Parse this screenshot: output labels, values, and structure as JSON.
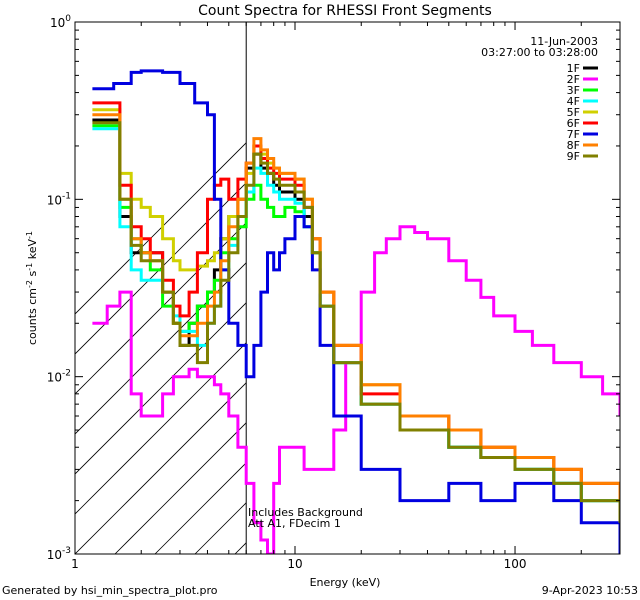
{
  "chart_data": {
    "type": "line",
    "title": "Count Spectra for RHESSI Front Segments",
    "xlabel": "Energy (keV)",
    "ylabel": "counts cm-2 s-1 keV-1",
    "xscale": "log",
    "yscale": "log",
    "xlim": [
      1,
      300
    ],
    "ylim": [
      0.001,
      1
    ],
    "xticks": [
      {
        "v": 1,
        "label": "1"
      },
      {
        "v": 10,
        "label": "10"
      },
      {
        "v": 100,
        "label": "100"
      }
    ],
    "yticks": [
      {
        "v": 1,
        "base": "10",
        "exp": "0"
      },
      {
        "v": 0.1,
        "base": "10",
        "exp": "-1"
      },
      {
        "v": 0.01,
        "base": "10",
        "exp": "-2"
      },
      {
        "v": 0.001,
        "base": "10",
        "exp": "-3"
      }
    ],
    "attenuated_region_max_kev": 6,
    "date": "11-Jun-2003",
    "time_range": "03:27:00 to 03:28:00",
    "annotation_lines": [
      "Includes Background",
      "Att A1, FDecim 1"
    ],
    "legend_position": "top-right",
    "series": [
      {
        "name": "1F",
        "color": "#000000",
        "x": [
          1.2,
          1.4,
          1.6,
          1.8,
          2.0,
          2.2,
          2.5,
          2.8,
          3.0,
          3.3,
          3.6,
          4.0,
          4.3,
          4.6,
          5.0,
          5.5,
          6.0,
          6.5,
          7.0,
          7.5,
          8.0,
          8.5,
          9.0,
          10.0,
          11.0,
          12.0,
          13.0,
          15.0,
          20.0,
          30.0,
          50.0,
          70.0,
          100.0,
          150.0,
          200.0,
          300.0
        ],
        "y": [
          0.28,
          0.28,
          0.08,
          0.05,
          0.05,
          0.05,
          0.03,
          0.02,
          0.015,
          0.02,
          0.025,
          0.03,
          0.04,
          0.06,
          0.08,
          0.1,
          0.15,
          0.18,
          0.15,
          0.14,
          0.12,
          0.11,
          0.11,
          0.1,
          0.08,
          0.05,
          0.025,
          0.012,
          0.007,
          0.005,
          0.004,
          0.0035,
          0.003,
          0.0025,
          0.002,
          0.0015
        ]
      },
      {
        "name": "2F",
        "color": "#ff00ff",
        "x": [
          1.2,
          1.4,
          1.6,
          1.8,
          2.0,
          2.2,
          2.5,
          2.8,
          3.0,
          3.3,
          3.6,
          4.0,
          4.3,
          4.6,
          5.0,
          5.5,
          6.0,
          6.5,
          7.0,
          7.5,
          8.0,
          8.5,
          9.0,
          10.0,
          11.0,
          12.0,
          13.0,
          15.0,
          17.0,
          20.0,
          23.0,
          26.0,
          30.0,
          35.0,
          40.0,
          50.0,
          60.0,
          70.0,
          80.0,
          100.0,
          120.0,
          150.0,
          200.0,
          250.0,
          300.0
        ],
        "y": [
          0.02,
          0.025,
          0.03,
          0.008,
          0.006,
          0.006,
          0.008,
          0.01,
          0.01,
          0.011,
          0.01,
          0.01,
          0.009,
          0.008,
          0.006,
          0.004,
          0.0025,
          0.0015,
          0.0012,
          0.001,
          0.0025,
          0.004,
          0.004,
          0.004,
          0.003,
          0.003,
          0.003,
          0.005,
          0.012,
          0.03,
          0.05,
          0.06,
          0.07,
          0.065,
          0.06,
          0.045,
          0.035,
          0.028,
          0.022,
          0.018,
          0.015,
          0.012,
          0.01,
          0.008,
          0.006
        ]
      },
      {
        "name": "3F",
        "color": "#00ff00",
        "x": [
          1.2,
          1.4,
          1.6,
          1.8,
          2.0,
          2.2,
          2.5,
          2.8,
          3.0,
          3.3,
          3.6,
          4.0,
          4.3,
          4.6,
          5.0,
          5.5,
          6.0,
          6.5,
          7.0,
          7.5,
          8.0,
          8.5,
          9.0,
          10.0,
          11.0,
          12.0,
          13.0,
          15.0,
          20.0,
          30.0,
          50.0,
          70.0,
          100.0,
          150.0,
          200.0,
          300.0
        ],
        "y": [
          0.26,
          0.26,
          0.09,
          0.06,
          0.05,
          0.04,
          0.025,
          0.02,
          0.018,
          0.02,
          0.025,
          0.03,
          0.035,
          0.05,
          0.06,
          0.07,
          0.1,
          0.12,
          0.1,
          0.09,
          0.08,
          0.08,
          0.09,
          0.085,
          0.07,
          0.05,
          0.025,
          0.012,
          0.007,
          0.005,
          0.004,
          0.0035,
          0.003,
          0.0025,
          0.002,
          0.0015
        ]
      },
      {
        "name": "4F",
        "color": "#00ffff",
        "x": [
          1.2,
          1.4,
          1.6,
          1.8,
          2.0,
          2.2,
          2.5,
          2.8,
          3.0,
          3.3,
          3.6,
          4.0,
          4.3,
          4.6,
          5.0,
          5.5,
          6.0,
          6.5,
          7.0,
          7.5,
          8.0,
          8.5,
          9.0,
          10.0,
          11.0,
          12.0,
          13.0,
          15.0,
          20.0,
          30.0,
          50.0,
          70.0,
          100.0,
          150.0,
          200.0,
          300.0
        ],
        "y": [
          0.25,
          0.25,
          0.07,
          0.04,
          0.035,
          0.035,
          0.03,
          0.022,
          0.018,
          0.018,
          0.015,
          0.02,
          0.025,
          0.04,
          0.055,
          0.08,
          0.11,
          0.15,
          0.14,
          0.12,
          0.11,
          0.1,
          0.1,
          0.095,
          0.07,
          0.05,
          0.025,
          0.012,
          0.007,
          0.005,
          0.004,
          0.0035,
          0.003,
          0.0025,
          0.002,
          0.0015
        ]
      },
      {
        "name": "5F",
        "color": "#d0d000",
        "x": [
          1.2,
          1.4,
          1.6,
          1.8,
          2.0,
          2.2,
          2.5,
          2.8,
          3.0,
          3.3,
          3.6,
          4.0,
          4.3,
          4.6,
          5.0,
          5.5,
          6.0,
          6.5,
          7.0,
          7.5,
          8.0,
          8.5,
          9.0,
          10.0,
          11.0,
          12.0,
          13.0,
          15.0,
          20.0,
          30.0,
          50.0,
          70.0,
          100.0,
          150.0,
          200.0,
          300.0
        ],
        "y": [
          0.32,
          0.32,
          0.14,
          0.1,
          0.09,
          0.08,
          0.06,
          0.045,
          0.04,
          0.04,
          0.042,
          0.045,
          0.05,
          0.06,
          0.08,
          0.1,
          0.14,
          0.2,
          0.18,
          0.16,
          0.15,
          0.14,
          0.14,
          0.13,
          0.1,
          0.06,
          0.03,
          0.015,
          0.009,
          0.006,
          0.005,
          0.004,
          0.0035,
          0.003,
          0.0025,
          0.002
        ]
      },
      {
        "name": "6F",
        "color": "#ff0000",
        "x": [
          1.2,
          1.4,
          1.6,
          1.8,
          2.0,
          2.2,
          2.5,
          2.8,
          3.0,
          3.3,
          3.6,
          4.0,
          4.3,
          4.6,
          5.0,
          5.5,
          6.0,
          6.5,
          7.0,
          7.5,
          8.0,
          8.5,
          9.0,
          10.0,
          11.0,
          12.0,
          13.0,
          15.0,
          20.0,
          30.0,
          50.0,
          70.0,
          100.0,
          150.0,
          200.0,
          300.0
        ],
        "y": [
          0.35,
          0.35,
          0.12,
          0.07,
          0.06,
          0.05,
          0.035,
          0.025,
          0.022,
          0.03,
          0.05,
          0.1,
          0.12,
          0.13,
          0.1,
          0.13,
          0.16,
          0.2,
          0.17,
          0.15,
          0.14,
          0.13,
          0.13,
          0.12,
          0.09,
          0.06,
          0.03,
          0.015,
          0.008,
          0.006,
          0.005,
          0.004,
          0.0035,
          0.003,
          0.0025,
          0.002
        ]
      },
      {
        "name": "7F",
        "color": "#0000e0",
        "x": [
          1.2,
          1.5,
          1.8,
          2.0,
          2.5,
          3.0,
          3.5,
          4.0,
          4.3,
          4.6,
          5.0,
          5.5,
          6.0,
          6.5,
          7.0,
          7.5,
          8.0,
          8.5,
          9.0,
          10.0,
          11.0,
          12.0,
          13.0,
          15.0,
          20.0,
          30.0,
          50.0,
          70.0,
          100.0,
          150.0,
          200.0,
          300.0
        ],
        "y": [
          0.42,
          0.45,
          0.52,
          0.53,
          0.52,
          0.45,
          0.35,
          0.3,
          0.1,
          0.04,
          0.02,
          0.015,
          0.01,
          0.015,
          0.03,
          0.05,
          0.04,
          0.05,
          0.06,
          0.08,
          0.07,
          0.04,
          0.015,
          0.006,
          0.003,
          0.002,
          0.0025,
          0.002,
          0.0025,
          0.002,
          0.0015,
          0.001
        ]
      },
      {
        "name": "8F",
        "color": "#ff8000",
        "x": [
          1.2,
          1.4,
          1.6,
          1.8,
          2.0,
          2.2,
          2.5,
          2.8,
          3.0,
          3.3,
          3.6,
          4.0,
          4.3,
          4.6,
          5.0,
          5.5,
          6.0,
          6.5,
          7.0,
          7.5,
          8.0,
          8.5,
          9.0,
          10.0,
          11.0,
          12.0,
          13.0,
          15.0,
          20.0,
          30.0,
          50.0,
          70.0,
          100.0,
          150.0,
          200.0,
          300.0
        ],
        "y": [
          0.3,
          0.3,
          0.1,
          0.06,
          0.05,
          0.045,
          0.03,
          0.02,
          0.017,
          0.017,
          0.02,
          0.025,
          0.03,
          0.045,
          0.07,
          0.1,
          0.16,
          0.22,
          0.19,
          0.17,
          0.15,
          0.14,
          0.14,
          0.13,
          0.1,
          0.06,
          0.03,
          0.015,
          0.009,
          0.006,
          0.005,
          0.004,
          0.0035,
          0.003,
          0.0025,
          0.002
        ]
      },
      {
        "name": "9F",
        "color": "#808000",
        "x": [
          1.2,
          1.4,
          1.6,
          1.8,
          2.0,
          2.2,
          2.5,
          2.8,
          3.0,
          3.3,
          3.6,
          4.0,
          4.3,
          4.6,
          5.0,
          5.5,
          6.0,
          6.5,
          7.0,
          7.5,
          8.0,
          8.5,
          9.0,
          10.0,
          11.0,
          12.0,
          13.0,
          15.0,
          20.0,
          30.0,
          50.0,
          70.0,
          100.0,
          150.0,
          200.0,
          300.0
        ],
        "y": [
          0.27,
          0.27,
          0.1,
          0.055,
          0.045,
          0.045,
          0.03,
          0.02,
          0.015,
          0.015,
          0.012,
          0.02,
          0.025,
          0.035,
          0.05,
          0.08,
          0.12,
          0.18,
          0.16,
          0.14,
          0.13,
          0.12,
          0.12,
          0.11,
          0.09,
          0.05,
          0.025,
          0.012,
          0.007,
          0.005,
          0.004,
          0.0035,
          0.003,
          0.0025,
          0.002,
          0.0015
        ]
      }
    ]
  },
  "footer": {
    "generated_by": "Generated by hsi_min_spectra_plot.pro",
    "timestamp": "9-Apr-2023 10:53"
  }
}
